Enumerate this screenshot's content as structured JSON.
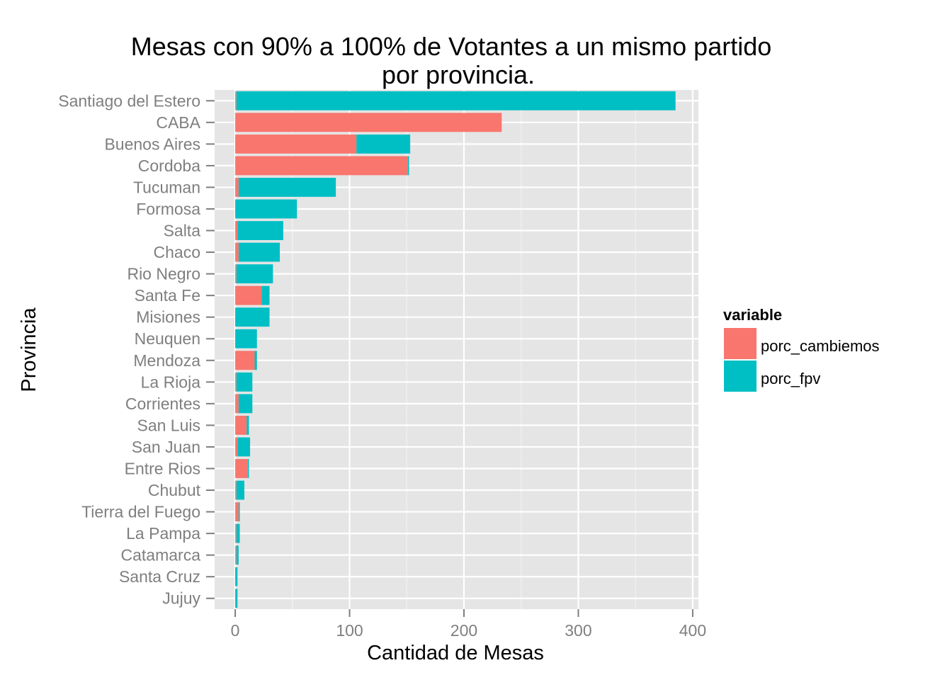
{
  "chart_data": {
    "type": "bar",
    "orientation": "horizontal",
    "stacked": true,
    "title_line1": "Mesas con 90% a 100% de Votantes a un mismo partido",
    "title_line2": "por provincia.",
    "xlabel": "Cantidad de Mesas",
    "ylabel": "Provincia",
    "xlim": [
      -18,
      405
    ],
    "x_ticks": [
      0,
      100,
      200,
      300,
      400
    ],
    "x_tick_labels": [
      "0",
      "100",
      "200",
      "300",
      "400"
    ],
    "grid": true,
    "categories": [
      "Santiago del Estero",
      "CABA",
      "Buenos Aires",
      "Cordoba",
      "Tucuman",
      "Formosa",
      "Salta",
      "Chaco",
      "Rio Negro",
      "Santa Fe",
      "Misiones",
      "Neuquen",
      "Mendoza",
      "La Rioja",
      "Corrientes",
      "San Luis",
      "San Juan",
      "Entre Rios",
      "Chubut",
      "Tierra del Fuego",
      "La Pampa",
      "Catamarca",
      "Santa Cruz",
      "Jujuy"
    ],
    "series": [
      {
        "name": "porc_cambiemos",
        "color": "#F8766D",
        "values": [
          1,
          233,
          106,
          151,
          3,
          0,
          2,
          3,
          1,
          23,
          0,
          0,
          17,
          1,
          3,
          10,
          2,
          11,
          1,
          3,
          1,
          1,
          0,
          0
        ]
      },
      {
        "name": "porc_fpv",
        "color": "#00BFC4",
        "values": [
          384,
          0,
          47,
          1,
          85,
          54,
          40,
          36,
          32,
          7,
          30,
          19,
          2,
          14,
          12,
          2,
          11,
          1,
          7,
          1,
          3,
          2,
          2,
          2
        ]
      }
    ],
    "legend": {
      "title": "variable",
      "position": "right"
    }
  },
  "colors": {
    "panel": "#E5E5E5",
    "grid_major": "#FFFFFF",
    "grid_minor": "#F2F2F2",
    "tick_text": "#7F7F7F"
  }
}
